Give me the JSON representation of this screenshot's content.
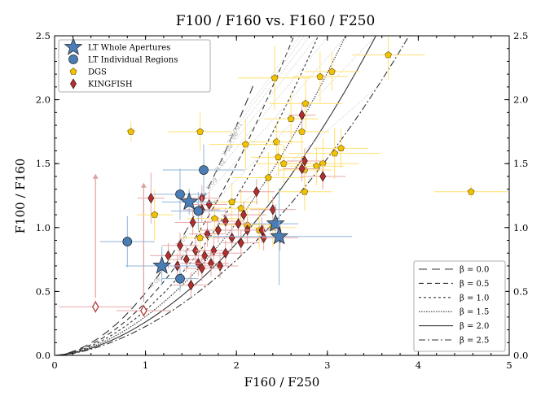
{
  "chart_data": {
    "type": "scatter",
    "title": "F100 / F160  vs.  F160 / F250",
    "xlabel": "F160 / F250",
    "ylabel": "F100 / F160",
    "xlim": [
      0,
      5
    ],
    "ylim": [
      0,
      2.5
    ],
    "x_ticks": [
      "0",
      "1",
      "2",
      "3",
      "4",
      "5"
    ],
    "y_ticks": [
      "0.0",
      "0.5",
      "1.0",
      "1.5",
      "2.0",
      "2.5"
    ],
    "legend_points_placement": "top-left",
    "legend_lines_placement": "bottom-right",
    "grid": false,
    "series": [
      {
        "name": "LT Whole Apertures",
        "marker": "star",
        "color": "#4a7db5",
        "points": [
          {
            "x": 1.48,
            "y": 1.2,
            "xerr": 0.3,
            "yerr": 0.1
          },
          {
            "x": 1.18,
            "y": 0.7,
            "xerr": 0.4,
            "yerr": 0.15
          },
          {
            "x": 2.43,
            "y": 1.03,
            "xerr": 0.25,
            "yerr": 0.15
          },
          {
            "x": 2.47,
            "y": 0.93,
            "xerr": 0.8,
            "yerr": 0.38
          }
        ]
      },
      {
        "name": "LT Individual Regions",
        "marker": "circle",
        "color": "#4a7db5",
        "points": [
          {
            "x": 1.64,
            "y": 1.45,
            "xerr": 0.45,
            "yerr": 0.2
          },
          {
            "x": 1.38,
            "y": 1.26,
            "xerr": 0.3,
            "yerr": 0.2
          },
          {
            "x": 1.58,
            "y": 1.13,
            "xerr": 0.3,
            "yerr": 0.15
          },
          {
            "x": 0.8,
            "y": 0.89,
            "xerr": 0.3,
            "yerr": 0.2
          },
          {
            "x": 1.38,
            "y": 0.6,
            "xerr": 0.2,
            "yerr": 0.1
          }
        ]
      },
      {
        "name": "DGS",
        "marker": "pentagon",
        "color": "#f2c200",
        "points": [
          {
            "x": 0.84,
            "y": 1.75,
            "xerr": 0.05,
            "yerr": 0.08
          },
          {
            "x": 1.6,
            "y": 1.75,
            "xerr": 0.35,
            "yerr": 0.15
          },
          {
            "x": 1.1,
            "y": 1.1,
            "xerr": 0.2,
            "yerr": 0.2
          },
          {
            "x": 2.42,
            "y": 2.17,
            "xerr": 0.4,
            "yerr": 0.25
          },
          {
            "x": 2.92,
            "y": 2.18,
            "xerr": 0.3,
            "yerr": 0.2
          },
          {
            "x": 3.05,
            "y": 2.22,
            "xerr": 0.3,
            "yerr": 0.15
          },
          {
            "x": 3.67,
            "y": 2.35,
            "xerr": 0.4,
            "yerr": 0.2
          },
          {
            "x": 2.76,
            "y": 1.97,
            "xerr": 0.4,
            "yerr": 0.2
          },
          {
            "x": 2.6,
            "y": 1.85,
            "xerr": 0.3,
            "yerr": 0.2
          },
          {
            "x": 2.72,
            "y": 1.75,
            "xerr": 0.3,
            "yerr": 0.15
          },
          {
            "x": 2.1,
            "y": 1.65,
            "xerr": 0.4,
            "yerr": 0.2
          },
          {
            "x": 2.44,
            "y": 1.67,
            "xerr": 0.3,
            "yerr": 0.15
          },
          {
            "x": 3.15,
            "y": 1.62,
            "xerr": 0.3,
            "yerr": 0.15
          },
          {
            "x": 3.08,
            "y": 1.58,
            "xerr": 0.5,
            "yerr": 0.2
          },
          {
            "x": 2.46,
            "y": 1.55,
            "xerr": 0.3,
            "yerr": 0.15
          },
          {
            "x": 2.52,
            "y": 1.5,
            "xerr": 0.3,
            "yerr": 0.15
          },
          {
            "x": 2.95,
            "y": 1.5,
            "xerr": 0.4,
            "yerr": 0.2
          },
          {
            "x": 2.88,
            "y": 1.48,
            "xerr": 0.3,
            "yerr": 0.15
          },
          {
            "x": 2.75,
            "y": 1.45,
            "xerr": 0.3,
            "yerr": 0.15
          },
          {
            "x": 2.35,
            "y": 1.39,
            "xerr": 0.4,
            "yerr": 0.2
          },
          {
            "x": 2.75,
            "y": 1.28,
            "xerr": 0.3,
            "yerr": 0.15
          },
          {
            "x": 4.58,
            "y": 1.28,
            "xerr": 0.4,
            "yerr": 0.05
          },
          {
            "x": 1.95,
            "y": 1.2,
            "xerr": 0.3,
            "yerr": 0.15
          },
          {
            "x": 2.05,
            "y": 1.15,
            "xerr": 0.3,
            "yerr": 0.15
          },
          {
            "x": 1.76,
            "y": 1.07,
            "xerr": 0.3,
            "yerr": 0.15
          },
          {
            "x": 2.12,
            "y": 1.02,
            "xerr": 0.3,
            "yerr": 0.15
          },
          {
            "x": 1.6,
            "y": 0.92,
            "xerr": 0.2,
            "yerr": 0.1
          },
          {
            "x": 2.25,
            "y": 0.98,
            "xerr": 0.25,
            "yerr": 0.15
          },
          {
            "x": 2.4,
            "y": 1.0,
            "xerr": 0.25,
            "yerr": 0.15
          }
        ]
      },
      {
        "name": "KINGFISH",
        "marker": "diamond",
        "color": "#b03030",
        "points": [
          {
            "x": 2.72,
            "y": 1.88,
            "xerr": 0.15,
            "yerr": 0.1
          },
          {
            "x": 2.75,
            "y": 1.52,
            "xerr": 0.2,
            "yerr": 0.1
          },
          {
            "x": 2.72,
            "y": 1.46,
            "xerr": 0.2,
            "yerr": 0.1
          },
          {
            "x": 2.95,
            "y": 1.4,
            "xerr": 0.25,
            "yerr": 0.1
          },
          {
            "x": 1.06,
            "y": 1.23,
            "xerr": 0.15,
            "yerr": 0.2
          },
          {
            "x": 1.62,
            "y": 1.23,
            "xerr": 0.2,
            "yerr": 0.1
          },
          {
            "x": 2.22,
            "y": 1.28,
            "xerr": 0.2,
            "yerr": 0.1
          },
          {
            "x": 2.4,
            "y": 1.14,
            "xerr": 0.25,
            "yerr": 0.1
          },
          {
            "x": 2.08,
            "y": 1.1,
            "xerr": 0.25,
            "yerr": 0.1
          },
          {
            "x": 1.7,
            "y": 1.18,
            "xerr": 0.2,
            "yerr": 0.1
          },
          {
            "x": 1.62,
            "y": 1.14,
            "xerr": 0.2,
            "yerr": 0.1
          },
          {
            "x": 1.52,
            "y": 1.04,
            "xerr": 0.2,
            "yerr": 0.1
          },
          {
            "x": 1.88,
            "y": 1.05,
            "xerr": 0.2,
            "yerr": 0.1
          },
          {
            "x": 2.02,
            "y": 1.03,
            "xerr": 0.2,
            "yerr": 0.1
          },
          {
            "x": 2.12,
            "y": 0.98,
            "xerr": 0.2,
            "yerr": 0.1
          },
          {
            "x": 2.28,
            "y": 0.98,
            "xerr": 0.2,
            "yerr": 0.1
          },
          {
            "x": 1.68,
            "y": 0.95,
            "xerr": 0.2,
            "yerr": 0.1
          },
          {
            "x": 1.8,
            "y": 0.98,
            "xerr": 0.2,
            "yerr": 0.1
          },
          {
            "x": 1.95,
            "y": 0.92,
            "xerr": 0.2,
            "yerr": 0.1
          },
          {
            "x": 2.05,
            "y": 0.88,
            "xerr": 0.2,
            "yerr": 0.1
          },
          {
            "x": 2.3,
            "y": 0.92,
            "xerr": 0.2,
            "yerr": 0.1
          },
          {
            "x": 2.48,
            "y": 0.92,
            "xerr": 0.2,
            "yerr": 0.1
          },
          {
            "x": 1.38,
            "y": 0.86,
            "xerr": 0.2,
            "yerr": 0.1
          },
          {
            "x": 1.55,
            "y": 0.82,
            "xerr": 0.2,
            "yerr": 0.1
          },
          {
            "x": 1.75,
            "y": 0.82,
            "xerr": 0.2,
            "yerr": 0.1
          },
          {
            "x": 1.88,
            "y": 0.8,
            "xerr": 0.2,
            "yerr": 0.1
          },
          {
            "x": 1.25,
            "y": 0.78,
            "xerr": 0.2,
            "yerr": 0.1
          },
          {
            "x": 1.65,
            "y": 0.78,
            "xerr": 0.2,
            "yerr": 0.1
          },
          {
            "x": 1.45,
            "y": 0.75,
            "xerr": 0.2,
            "yerr": 0.1
          },
          {
            "x": 1.58,
            "y": 0.72,
            "xerr": 0.2,
            "yerr": 0.1
          },
          {
            "x": 1.72,
            "y": 0.72,
            "xerr": 0.2,
            "yerr": 0.1
          },
          {
            "x": 1.82,
            "y": 0.7,
            "xerr": 0.2,
            "yerr": 0.1
          },
          {
            "x": 1.35,
            "y": 0.7,
            "xerr": 0.2,
            "yerr": 0.1
          },
          {
            "x": 1.62,
            "y": 0.68,
            "xerr": 0.2,
            "yerr": 0.1
          },
          {
            "x": 1.5,
            "y": 0.55,
            "xerr": 0.2,
            "yerr": 0.1
          },
          {
            "x": 0.45,
            "y": 0.38,
            "xerr": 0.4,
            "yerr": 0.05,
            "upper_limit": true
          },
          {
            "x": 0.98,
            "y": 0.35,
            "xerr": 0.3,
            "yerr": 0.05,
            "upper_limit": true
          }
        ]
      }
    ],
    "upper_limit_arrows": [
      {
        "x": 0.45,
        "y_from": 0.45,
        "y_to": 1.42
      },
      {
        "x": 0.98,
        "y_from": 0.42,
        "y_to": 1.35
      }
    ],
    "beta_curves": [
      {
        "label": "β = 0.0",
        "beta": 0.0,
        "dash": "10,6"
      },
      {
        "label": "β = 0.5",
        "beta": 0.5,
        "dash": "6,4"
      },
      {
        "label": "β = 1.0",
        "beta": 1.0,
        "dash": "3,3"
      },
      {
        "label": "β = 1.5",
        "beta": 1.5,
        "dash": "1.5,1.5"
      },
      {
        "label": "β = 2.0",
        "beta": 2.0,
        "dash": ""
      },
      {
        "label": "β = 2.5",
        "beta": 2.5,
        "dash": "8,3,2,3"
      }
    ],
    "temperature_labels": [
      "100 K",
      "90 K",
      "80 K",
      "70 K",
      "60 K",
      "50 K",
      "40 K",
      "30 K"
    ]
  }
}
